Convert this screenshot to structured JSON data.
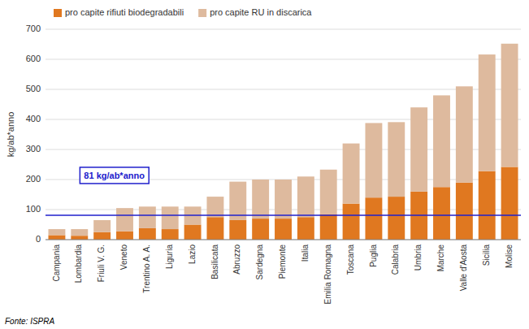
{
  "chart_data": {
    "type": "bar",
    "stacked": true,
    "categories": [
      "Campania",
      "Lombardia",
      "Friuli V. G.",
      "Veneto",
      "Trentino A. A.",
      "Liguria",
      "Lazio",
      "Basilicata",
      "Abruzzo",
      "Sardegna",
      "Piemonte",
      "Italia",
      "Emilia Romagna",
      "Toscana",
      "Puglia",
      "Calabria",
      "Umbria",
      "Marche",
      "Valle d'Aosta",
      "Sicilia",
      "Molise"
    ],
    "series": [
      {
        "name": "pro capite rifiuti biodegradabili",
        "color": "#E07820",
        "values": [
          15,
          13,
          25,
          28,
          38,
          35,
          50,
          75,
          65,
          70,
          70,
          75,
          85,
          120,
          140,
          143,
          160,
          175,
          190,
          228,
          242
        ]
      },
      {
        "name": "pro capite RU in discarica",
        "color": "#DEBA9E",
        "values": [
          20,
          22,
          40,
          77,
          72,
          75,
          60,
          68,
          128,
          130,
          130,
          135,
          148,
          200,
          248,
          248,
          280,
          305,
          320,
          388,
          410
        ]
      }
    ],
    "hline": {
      "y": 81,
      "color": "#2020CC"
    },
    "annotation": "81 kg/ab*anno",
    "ylabel": "kg/ab*anno",
    "ylim": [
      0,
      700
    ],
    "yticks": [
      0,
      100,
      200,
      300,
      400,
      500,
      600,
      700
    ],
    "grid": true,
    "legend": "upper left",
    "source": "Fonte: ISPRA"
  }
}
